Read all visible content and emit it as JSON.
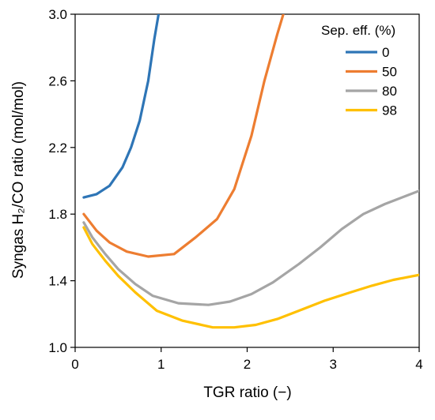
{
  "chart_data": {
    "type": "line",
    "xlabel": "TGR ratio (−)",
    "ylabel": "Syngas H₂/CO ratio (mol/mol)",
    "xlim": [
      0,
      4
    ],
    "ylim": [
      1.0,
      3.0
    ],
    "xticks": [
      "0",
      "1",
      "2",
      "3",
      "4"
    ],
    "yticks": [
      "1.0",
      "1.4",
      "1.8",
      "2.2",
      "2.6",
      "3.0"
    ],
    "grid": false,
    "legend": {
      "title": "Sep. eff. (%)",
      "placement": "top-right"
    },
    "series": [
      {
        "name": "0",
        "color": "#2E75B6",
        "x": [
          0.1,
          0.25,
          0.4,
          0.55,
          0.65,
          0.75,
          0.85,
          0.92,
          0.97
        ],
        "y": [
          1.9,
          1.92,
          1.97,
          2.08,
          2.2,
          2.36,
          2.6,
          2.85,
          3.0
        ]
      },
      {
        "name": "50",
        "color": "#ED7D31",
        "x": [
          0.1,
          0.25,
          0.4,
          0.6,
          0.85,
          1.15,
          1.4,
          1.65,
          1.85,
          2.05,
          2.2,
          2.35,
          2.42
        ],
        "y": [
          1.8,
          1.7,
          1.63,
          1.575,
          1.545,
          1.56,
          1.66,
          1.77,
          1.95,
          2.27,
          2.6,
          2.88,
          3.0
        ]
      },
      {
        "name": "80",
        "color": "#A5A5A5",
        "x": [
          0.1,
          0.2,
          0.35,
          0.5,
          0.7,
          0.9,
          1.2,
          1.55,
          1.8,
          2.05,
          2.3,
          2.6,
          2.85,
          3.1,
          3.35,
          3.6,
          3.85,
          4.0
        ],
        "y": [
          1.75,
          1.66,
          1.56,
          1.47,
          1.38,
          1.31,
          1.265,
          1.255,
          1.275,
          1.32,
          1.39,
          1.5,
          1.6,
          1.71,
          1.8,
          1.86,
          1.91,
          1.94
        ]
      },
      {
        "name": "98",
        "color": "#FFC000",
        "x": [
          0.1,
          0.2,
          0.35,
          0.5,
          0.7,
          0.95,
          1.25,
          1.6,
          1.85,
          2.1,
          2.35,
          2.6,
          2.9,
          3.2,
          3.45,
          3.7,
          3.9,
          4.0
        ],
        "y": [
          1.72,
          1.62,
          1.52,
          1.43,
          1.33,
          1.22,
          1.16,
          1.12,
          1.12,
          1.135,
          1.17,
          1.22,
          1.28,
          1.33,
          1.37,
          1.405,
          1.425,
          1.435
        ]
      }
    ]
  }
}
